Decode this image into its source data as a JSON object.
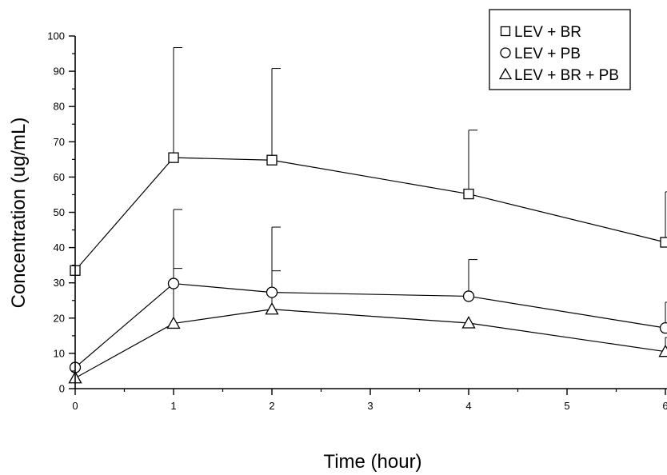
{
  "chart_data": {
    "type": "line",
    "title": "",
    "xlabel": "Time (hour)",
    "ylabel": "Concentration (ug/mL)",
    "xlim": [
      0,
      6
    ],
    "ylim": [
      0,
      100
    ],
    "x_ticks": [
      "0",
      "1",
      "2",
      "3",
      "4",
      "5",
      "6"
    ],
    "y_ticks": [
      "0",
      "10",
      "20",
      "30",
      "40",
      "50",
      "60",
      "70",
      "80",
      "90",
      "100"
    ],
    "grid": false,
    "legend_position": "top-right",
    "series": [
      {
        "name": "LEV + BR",
        "marker": "square",
        "color": "#000000",
        "x": [
          0,
          1,
          2,
          4,
          6
        ],
        "y": [
          33.5,
          65.5,
          64.8,
          55.2,
          41.5
        ],
        "error_upper": [
          0,
          31.2,
          26.0,
          18.1,
          14.3
        ]
      },
      {
        "name": "LEV + PB",
        "marker": "circle",
        "color": "#000000",
        "x": [
          0,
          1,
          2,
          4,
          6
        ],
        "y": [
          6.0,
          29.8,
          27.3,
          26.2,
          17.2
        ],
        "error_upper": [
          0,
          21.0,
          18.5,
          10.4,
          7.3
        ]
      },
      {
        "name": "LEV + BR + PB",
        "marker": "triangle",
        "color": "#000000",
        "x": [
          0,
          1,
          2,
          4,
          6
        ],
        "y": [
          3.0,
          18.5,
          22.5,
          18.6,
          10.5
        ],
        "error_upper": [
          0,
          15.6,
          10.9,
          0,
          4.0
        ]
      }
    ]
  }
}
